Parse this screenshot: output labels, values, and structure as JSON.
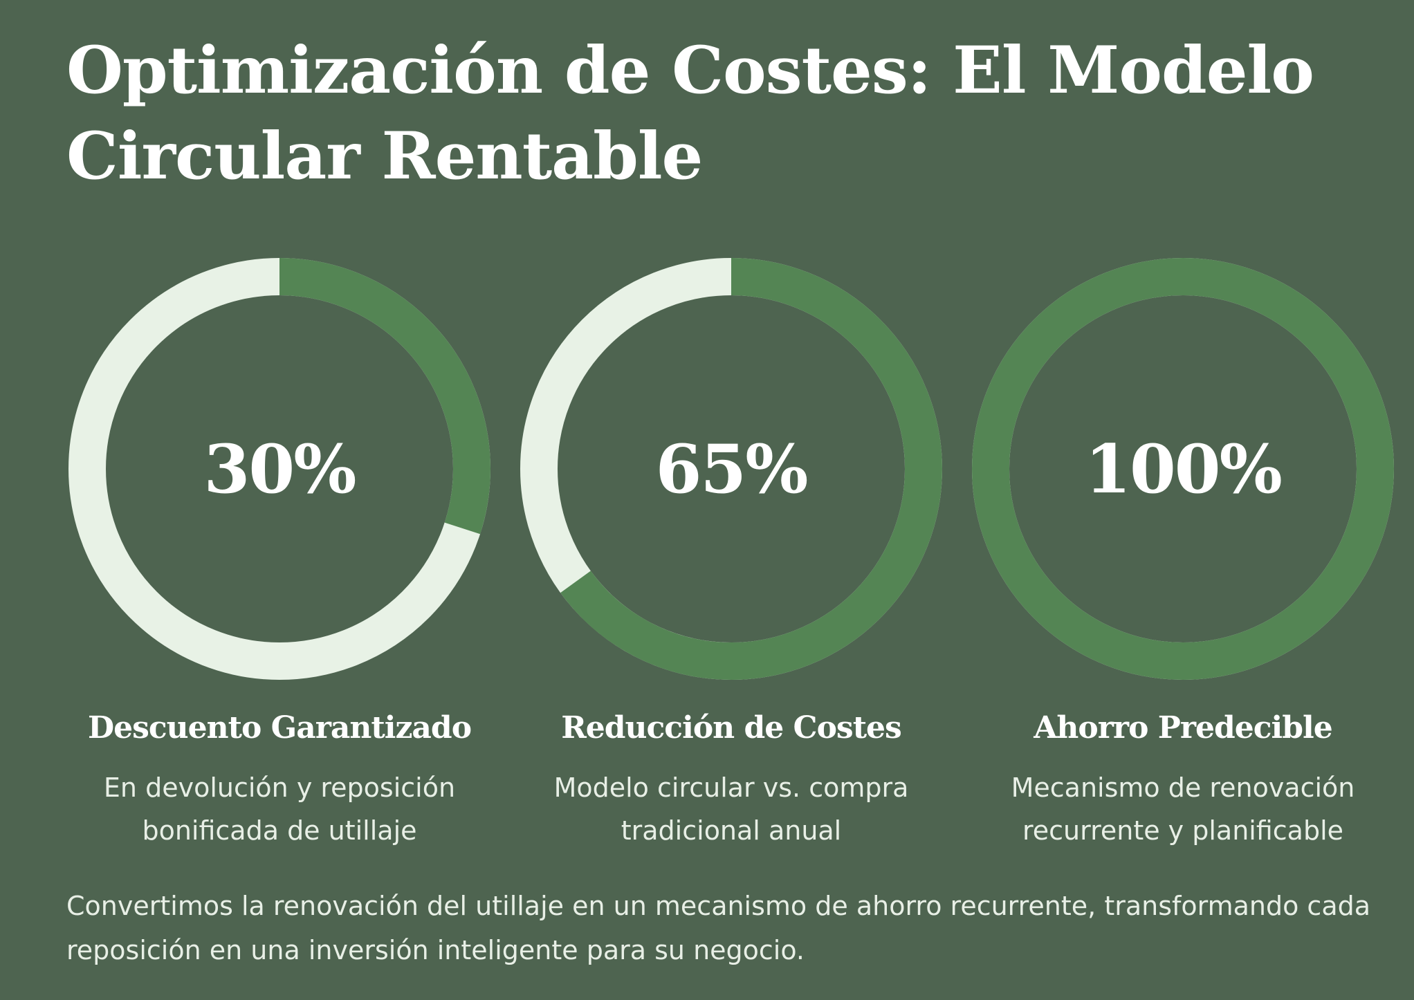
{
  "title": "Optimización de Costes: El Modelo Circular Rentable",
  "colors": {
    "background": "#4e6450",
    "ring_progress": "#548554",
    "ring_track": "#e8f2e6",
    "text": "#ffffff"
  },
  "metrics": [
    {
      "value_label": "30%",
      "percent": 30,
      "title": "Descuento Garantizado",
      "description": "En devolución y reposición bonificada de utillaje"
    },
    {
      "value_label": "65%",
      "percent": 65,
      "title": "Reducción de Costes",
      "description": "Modelo circular vs. compra tradicional anual"
    },
    {
      "value_label": "100%",
      "percent": 100,
      "title": "Ahorro Predecible",
      "description": "Mecanismo de renovación recurrente y planificable"
    }
  ],
  "footer": "Convertimos la renovación del utillaje en un mecanismo de ahorro recurrente, transformando cada reposición en una inversión inteligente para su negocio."
}
